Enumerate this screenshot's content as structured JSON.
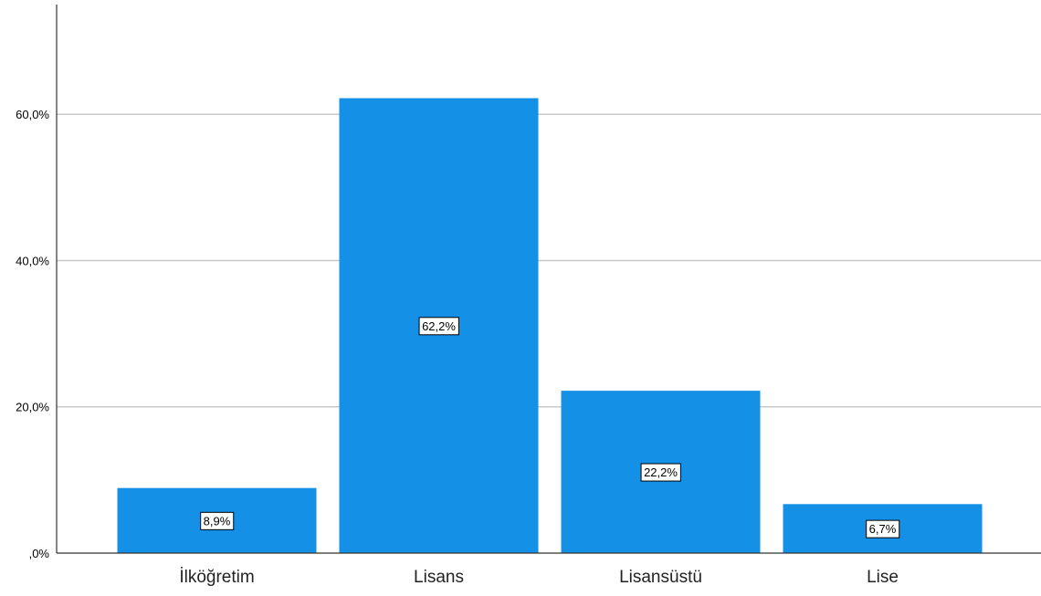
{
  "chart_data": {
    "type": "bar",
    "categories": [
      "İlköğretim",
      "Lisans",
      "Lisansüstü",
      "Lise"
    ],
    "values": [
      8.9,
      62.2,
      22.2,
      6.7
    ],
    "data_labels": [
      "8,9%",
      "62,2%",
      "22,2%",
      "6,7%"
    ],
    "y_ticks": [
      0,
      20,
      40,
      60
    ],
    "y_tick_labels": [
      ",0%",
      "20,0%",
      "40,0%",
      "60,0%"
    ],
    "ylim": [
      0,
      75
    ],
    "title": "",
    "xlabel": "",
    "ylabel": "",
    "grid": true,
    "bar_color": "#1490E6"
  }
}
